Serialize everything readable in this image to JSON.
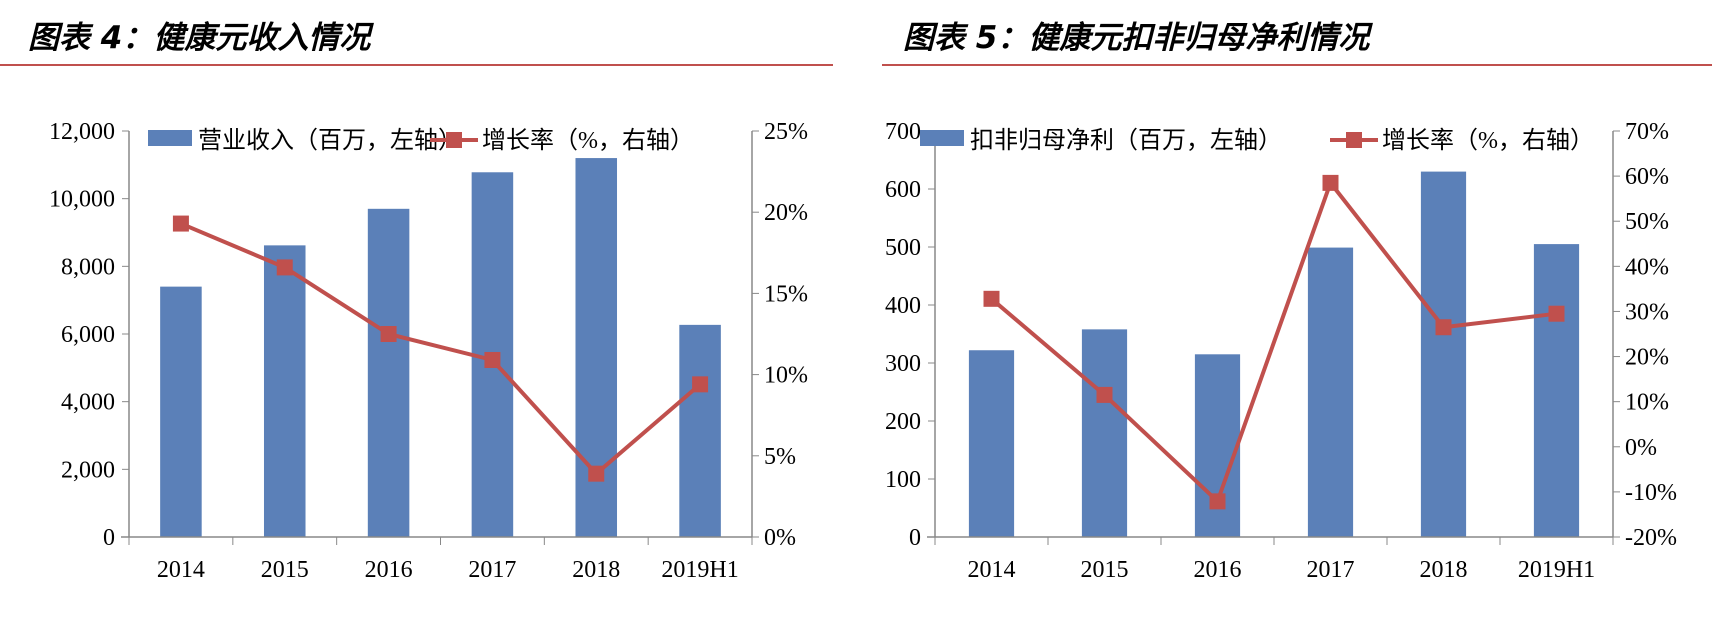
{
  "chart_data": [
    {
      "type": "bar+line",
      "title": "图表 4：健康元收入情况",
      "categories": [
        "2014",
        "2015",
        "2016",
        "2017",
        "2018",
        "2019H1"
      ],
      "series": [
        {
          "name": "营业收入（百万，左轴）",
          "type": "bar",
          "axis": "left",
          "values": [
            7400,
            8620,
            9700,
            10780,
            11200,
            6270
          ]
        },
        {
          "name": "增长率（%，右轴）",
          "type": "line",
          "axis": "right",
          "values": [
            19.3,
            16.6,
            12.5,
            10.9,
            3.9,
            9.4
          ]
        }
      ],
      "y_left": {
        "lim": [
          0,
          12000
        ],
        "ticks": [
          "0",
          "2,000",
          "4,000",
          "6,000",
          "8,000",
          "10,000",
          "12,000"
        ]
      },
      "y_right": {
        "lim": [
          0,
          25
        ],
        "ticks": [
          "0%",
          "5%",
          "10%",
          "15%",
          "20%",
          "25%"
        ]
      },
      "legend": "top",
      "grid": false,
      "colors": {
        "bar": "#5b80b8",
        "line": "#c0504d"
      }
    },
    {
      "type": "bar+line",
      "title": "图表 5：健康元扣非归母净利情况",
      "categories": [
        "2014",
        "2015",
        "2016",
        "2017",
        "2018",
        "2019H1"
      ],
      "series": [
        {
          "name": "扣非归母净利（百万，左轴）",
          "type": "bar",
          "axis": "left",
          "values": [
            322,
            358,
            315,
            499,
            630,
            505
          ]
        },
        {
          "name": "增长率（%，右轴）",
          "type": "line",
          "axis": "right",
          "values": [
            32.8,
            11.5,
            -12.1,
            58.5,
            26.5,
            29.5
          ]
        }
      ],
      "y_left": {
        "lim": [
          0,
          700
        ],
        "ticks": [
          "0",
          "100",
          "200",
          "300",
          "400",
          "500",
          "600",
          "700"
        ]
      },
      "y_right": {
        "lim": [
          -20,
          70
        ],
        "ticks": [
          "-20%",
          "-10%",
          "0%",
          "10%",
          "20%",
          "30%",
          "40%",
          "50%",
          "60%",
          "70%"
        ]
      },
      "legend": "top",
      "grid": false,
      "colors": {
        "bar": "#5b80b8",
        "line": "#c0504d"
      }
    }
  ]
}
